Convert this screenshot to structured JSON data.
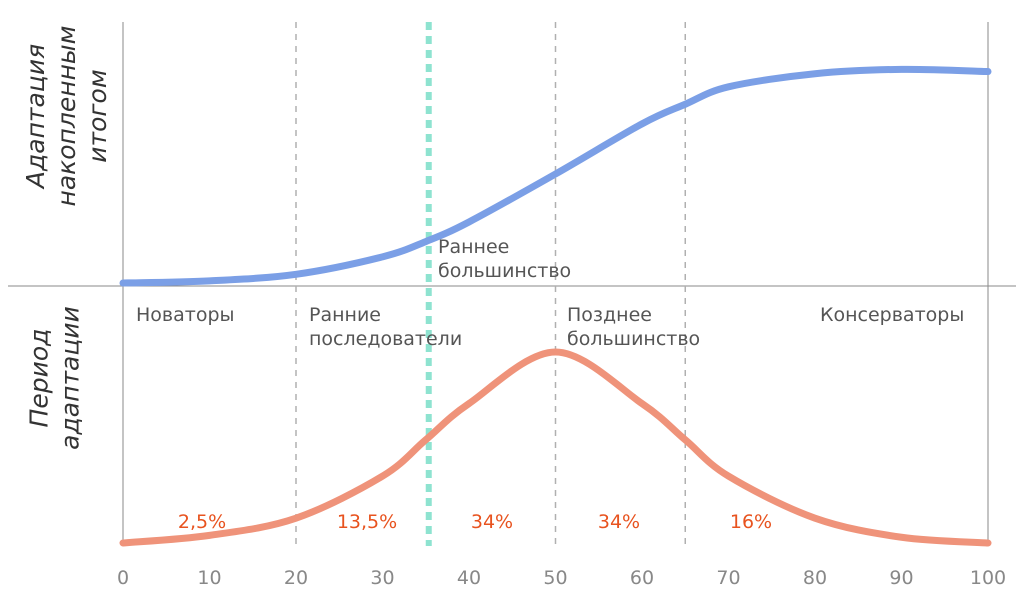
{
  "chart_data": {
    "type": "line",
    "xlim": [
      0,
      100
    ],
    "xticks": [
      "0",
      "10",
      "20",
      "30",
      "40",
      "50",
      "60",
      "70",
      "80",
      "90",
      "100"
    ],
    "top_ylabel": [
      "Адаптация",
      "накопленным",
      "итогом"
    ],
    "bottom_ylabel": [
      "Период",
      "адаптации"
    ],
    "segment_labels": [
      {
        "lines": [
          "Новаторы"
        ]
      },
      {
        "lines": [
          "Ранние",
          "последователи"
        ]
      },
      {
        "lines": [
          "Раннее",
          "большинство"
        ]
      },
      {
        "lines": [
          "Позднее",
          "большинство"
        ]
      },
      {
        "lines": [
          "Консерваторы"
        ]
      }
    ],
    "percent_labels": [
      "2,5%",
      "13,5%",
      "34%",
      "34%",
      "16%"
    ],
    "dividers_x": [
      20,
      50,
      65
    ],
    "highlight_x": 35,
    "series": [
      {
        "color": "#7b9fe6",
        "x": [
          0,
          10,
          20,
          30,
          35,
          40,
          50,
          60,
          65,
          70,
          80,
          90,
          100
        ],
        "y": [
          0,
          0.01,
          0.04,
          0.12,
          0.19,
          0.28,
          0.5,
          0.73,
          0.82,
          0.9,
          0.96,
          0.98,
          0.97
        ]
      },
      {
        "color": "#ef937a",
        "x": [
          0,
          10,
          20,
          30,
          35,
          40,
          50,
          60,
          65,
          70,
          80,
          90,
          100
        ],
        "y": [
          0,
          0.04,
          0.13,
          0.35,
          0.54,
          0.73,
          1.0,
          0.73,
          0.54,
          0.35,
          0.13,
          0.03,
          0
        ]
      }
    ],
    "colors": {
      "axis": "#8a8a8a",
      "divider": "#b0b0b0",
      "highlight": "#8ee3d0",
      "percent": "#e8531f"
    }
  }
}
